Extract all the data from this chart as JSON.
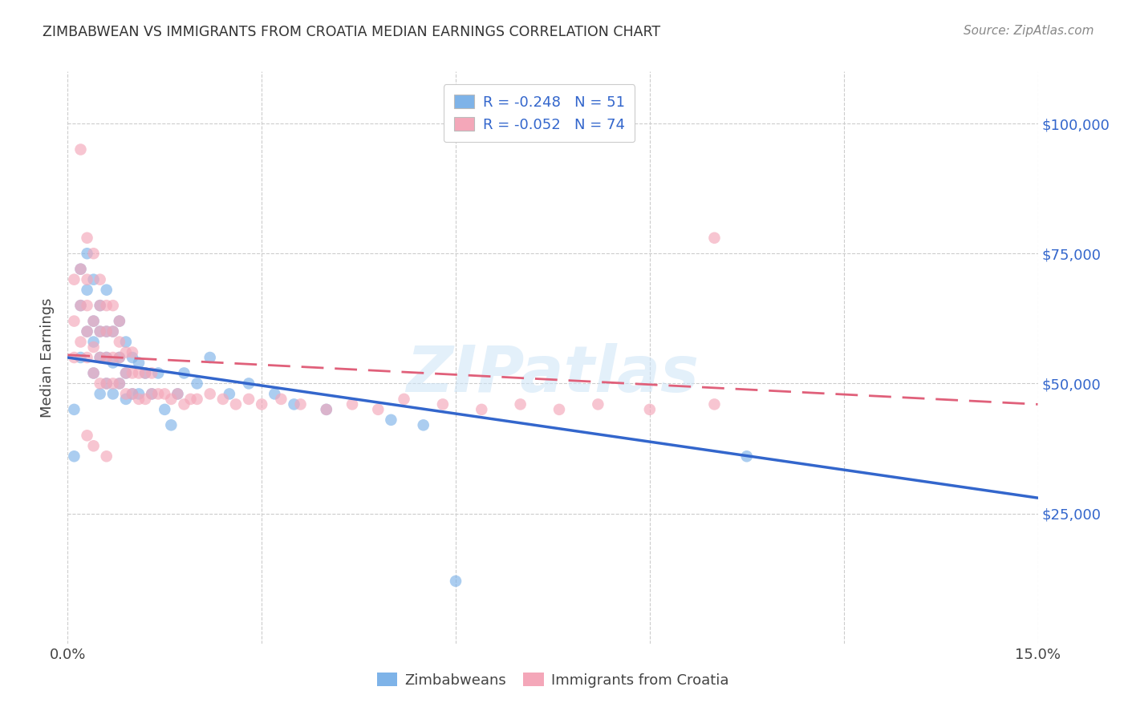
{
  "title": "ZIMBABWEAN VS IMMIGRANTS FROM CROATIA MEDIAN EARNINGS CORRELATION CHART",
  "source": "Source: ZipAtlas.com",
  "ylabel": "Median Earnings",
  "xlim": [
    0.0,
    0.15
  ],
  "ylim": [
    0,
    110000
  ],
  "yticks": [
    25000,
    50000,
    75000,
    100000
  ],
  "ytick_labels": [
    "$25,000",
    "$50,000",
    "$75,000",
    "$100,000"
  ],
  "xticks": [
    0.0,
    0.03,
    0.06,
    0.09,
    0.12,
    0.15
  ],
  "xtick_labels": [
    "0.0%",
    "",
    "",
    "",
    "",
    "15.0%"
  ],
  "color_blue": "#7eb3e8",
  "color_pink": "#f4a7b9",
  "line_blue": "#3366cc",
  "line_pink": "#e0607a",
  "watermark": "ZIPatlas",
  "background_color": "#ffffff",
  "series1_label": "Zimbabweans",
  "series2_label": "Immigrants from Croatia",
  "blue_R": -0.248,
  "blue_N": 51,
  "pink_R": -0.052,
  "pink_N": 74,
  "blue_trend_x0": 0.0,
  "blue_trend_y0": 55000,
  "blue_trend_x1": 0.15,
  "blue_trend_y1": 28000,
  "pink_trend_x0": 0.0,
  "pink_trend_y0": 55500,
  "pink_trend_x1": 0.15,
  "pink_trend_y1": 46000,
  "blue_x": [
    0.001,
    0.001,
    0.002,
    0.002,
    0.002,
    0.003,
    0.003,
    0.003,
    0.004,
    0.004,
    0.004,
    0.004,
    0.005,
    0.005,
    0.005,
    0.005,
    0.006,
    0.006,
    0.006,
    0.006,
    0.007,
    0.007,
    0.007,
    0.008,
    0.008,
    0.008,
    0.009,
    0.009,
    0.009,
    0.01,
    0.01,
    0.011,
    0.011,
    0.012,
    0.013,
    0.014,
    0.015,
    0.016,
    0.017,
    0.018,
    0.02,
    0.022,
    0.025,
    0.028,
    0.032,
    0.035,
    0.04,
    0.05,
    0.055,
    0.06,
    0.105
  ],
  "blue_y": [
    36000,
    45000,
    55000,
    65000,
    72000,
    60000,
    68000,
    75000,
    52000,
    58000,
    62000,
    70000,
    48000,
    55000,
    60000,
    65000,
    50000,
    55000,
    60000,
    68000,
    48000,
    54000,
    60000,
    50000,
    55000,
    62000,
    47000,
    52000,
    58000,
    48000,
    55000,
    48000,
    54000,
    52000,
    48000,
    52000,
    45000,
    42000,
    48000,
    52000,
    50000,
    55000,
    48000,
    50000,
    48000,
    46000,
    45000,
    43000,
    42000,
    12000,
    36000
  ],
  "pink_x": [
    0.001,
    0.001,
    0.001,
    0.002,
    0.002,
    0.002,
    0.002,
    0.003,
    0.003,
    0.003,
    0.003,
    0.003,
    0.004,
    0.004,
    0.004,
    0.004,
    0.005,
    0.005,
    0.005,
    0.005,
    0.005,
    0.006,
    0.006,
    0.006,
    0.006,
    0.007,
    0.007,
    0.007,
    0.007,
    0.008,
    0.008,
    0.008,
    0.008,
    0.009,
    0.009,
    0.009,
    0.01,
    0.01,
    0.01,
    0.011,
    0.011,
    0.012,
    0.012,
    0.013,
    0.013,
    0.014,
    0.015,
    0.016,
    0.017,
    0.018,
    0.019,
    0.02,
    0.022,
    0.024,
    0.026,
    0.028,
    0.03,
    0.033,
    0.036,
    0.04,
    0.044,
    0.048,
    0.052,
    0.058,
    0.064,
    0.07,
    0.076,
    0.082,
    0.09,
    0.1,
    0.003,
    0.004,
    0.006,
    0.1
  ],
  "pink_y": [
    55000,
    62000,
    70000,
    58000,
    65000,
    72000,
    95000,
    55000,
    60000,
    65000,
    70000,
    78000,
    52000,
    57000,
    62000,
    75000,
    50000,
    55000,
    60000,
    65000,
    70000,
    50000,
    55000,
    60000,
    65000,
    50000,
    55000,
    60000,
    65000,
    50000,
    55000,
    58000,
    62000,
    48000,
    52000,
    56000,
    48000,
    52000,
    56000,
    47000,
    52000,
    47000,
    52000,
    48000,
    52000,
    48000,
    48000,
    47000,
    48000,
    46000,
    47000,
    47000,
    48000,
    47000,
    46000,
    47000,
    46000,
    47000,
    46000,
    45000,
    46000,
    45000,
    47000,
    46000,
    45000,
    46000,
    45000,
    46000,
    45000,
    46000,
    40000,
    38000,
    36000,
    78000
  ]
}
